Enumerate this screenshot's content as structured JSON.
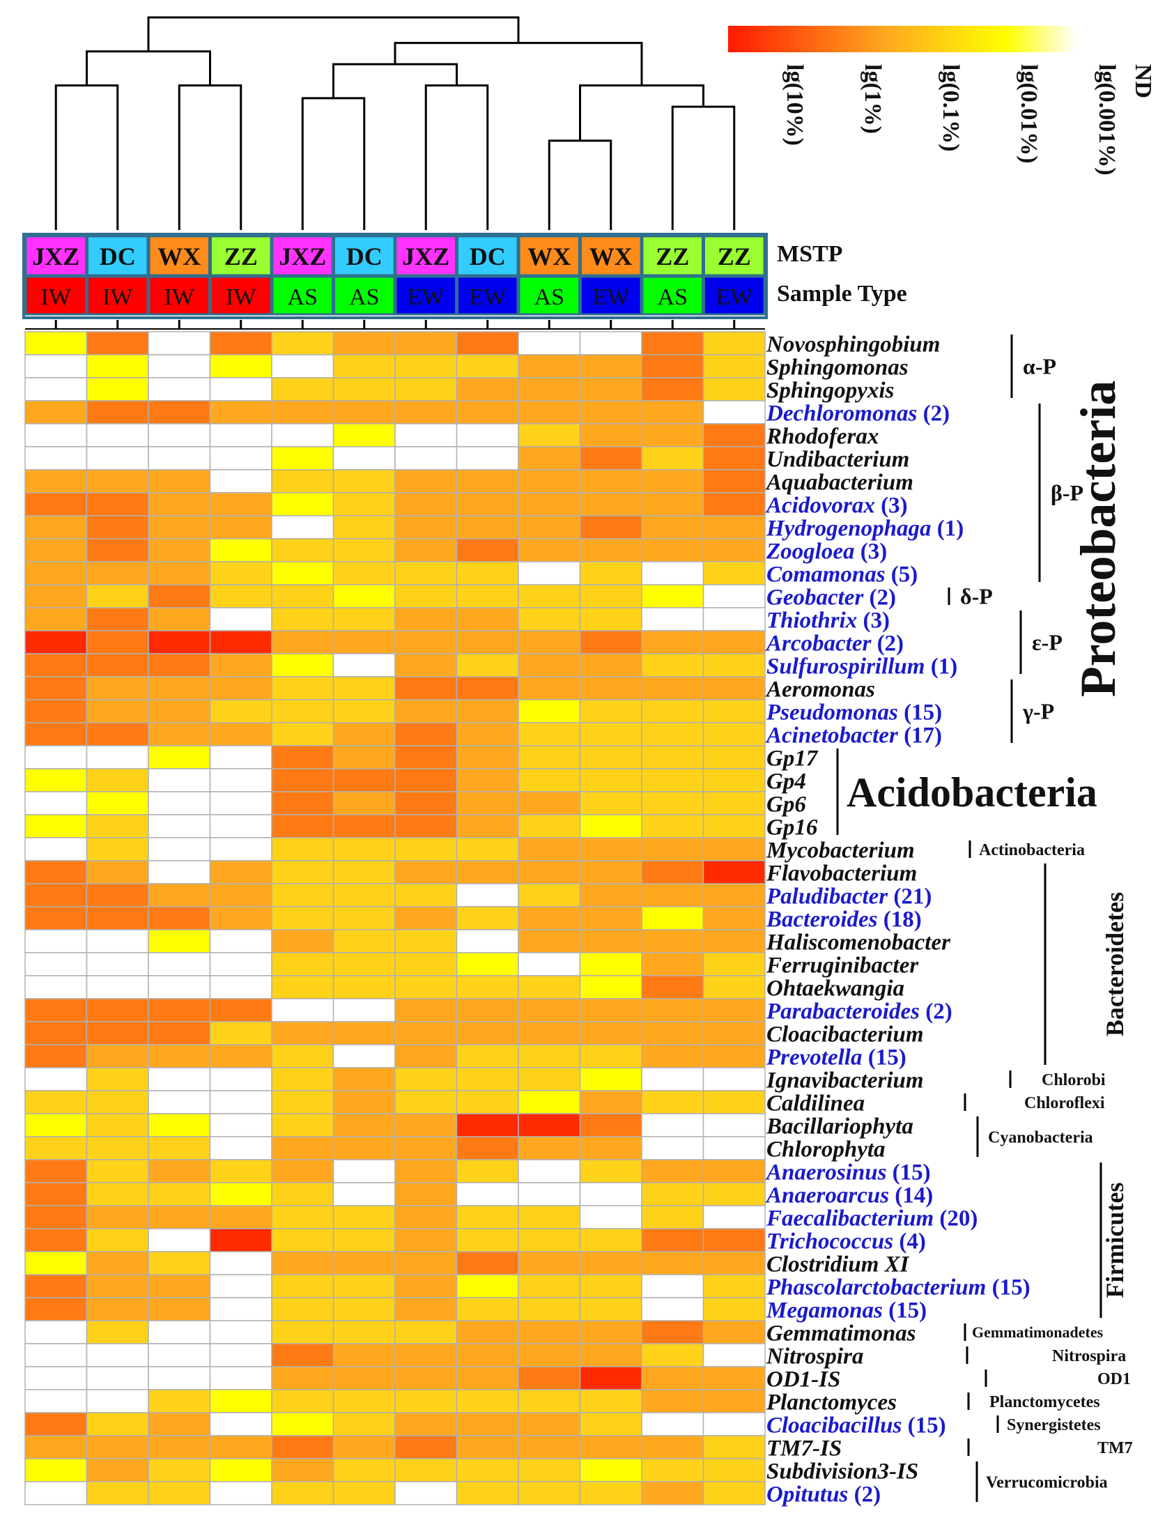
{
  "chart_data": {
    "type": "heatmap",
    "title": "",
    "legend_labels": [
      "lg(10%)",
      "lg(1%)",
      "lg(0.1%)",
      "lg(0.01%)",
      "lg(0.001%)",
      "ND"
    ],
    "color_scale": {
      "ND": "#ffffff",
      "levels": [
        "#ffffff",
        "#ffff00",
        "#ffd21a",
        "#ffa81f",
        "#ff7a14",
        "#ff2a00"
      ]
    },
    "row_header_labels": {
      "mstp": "MSTP",
      "sample_type": "Sample Type"
    },
    "columns": [
      {
        "mstp": "JXZ",
        "type": "IW"
      },
      {
        "mstp": "DC",
        "type": "IW"
      },
      {
        "mstp": "WX",
        "type": "IW"
      },
      {
        "mstp": "ZZ",
        "type": "IW"
      },
      {
        "mstp": "JXZ",
        "type": "AS"
      },
      {
        "mstp": "DC",
        "type": "AS"
      },
      {
        "mstp": "JXZ",
        "type": "EW"
      },
      {
        "mstp": "DC",
        "type": "EW"
      },
      {
        "mstp": "WX",
        "type": "AS"
      },
      {
        "mstp": "WX",
        "type": "EW"
      },
      {
        "mstp": "ZZ",
        "type": "AS"
      },
      {
        "mstp": "ZZ",
        "type": "EW"
      }
    ],
    "mstp_colors": {
      "JXZ": "#ff33ff",
      "DC": "#33ccff",
      "WX": "#ff8c1a",
      "ZZ": "#99ff33"
    },
    "type_colors": {
      "IW": "#ff0000",
      "AS": "#00ff00",
      "EW": "#0000ee"
    },
    "rows": [
      {
        "genus": "Novosphingobium",
        "count": "",
        "blue": false,
        "values": [
          1,
          4,
          0,
          4,
          2,
          3,
          3,
          4,
          0,
          0,
          4,
          2
        ]
      },
      {
        "genus": "Sphingomonas",
        "count": "",
        "blue": false,
        "values": [
          0,
          1,
          0,
          1,
          0,
          2,
          2,
          2,
          3,
          3,
          4,
          2
        ]
      },
      {
        "genus": "Sphingopyxis",
        "count": "",
        "blue": false,
        "values": [
          0,
          1,
          0,
          0,
          2,
          2,
          2,
          3,
          3,
          3,
          4,
          2
        ]
      },
      {
        "genus": "Dechloromonas",
        "count": "(2)",
        "blue": true,
        "values": [
          3,
          4,
          4,
          3,
          3,
          3,
          3,
          3,
          3,
          3,
          3,
          0
        ]
      },
      {
        "genus": "Rhodoferax",
        "count": "",
        "blue": false,
        "values": [
          0,
          0,
          0,
          0,
          0,
          1,
          0,
          0,
          2,
          3,
          3,
          4
        ]
      },
      {
        "genus": "Undibacterium",
        "count": "",
        "blue": false,
        "values": [
          0,
          0,
          0,
          0,
          1,
          0,
          0,
          0,
          3,
          4,
          2,
          4
        ]
      },
      {
        "genus": "Aquabacterium",
        "count": "",
        "blue": false,
        "values": [
          3,
          3,
          3,
          0,
          2,
          2,
          3,
          3,
          3,
          3,
          3,
          4
        ]
      },
      {
        "genus": "Acidovorax",
        "count": "(3)",
        "blue": true,
        "values": [
          4,
          4,
          3,
          3,
          1,
          2,
          3,
          3,
          3,
          3,
          3,
          4
        ]
      },
      {
        "genus": "Hydrogenophaga",
        "count": "(1)",
        "blue": true,
        "values": [
          3,
          4,
          3,
          3,
          0,
          2,
          3,
          3,
          3,
          4,
          3,
          3
        ]
      },
      {
        "genus": "Zoogloea",
        "count": "(3)",
        "blue": true,
        "values": [
          3,
          4,
          3,
          1,
          2,
          2,
          3,
          4,
          3,
          3,
          3,
          3
        ]
      },
      {
        "genus": "Comamonas",
        "count": "(5)",
        "blue": true,
        "values": [
          3,
          3,
          3,
          2,
          1,
          2,
          2,
          2,
          0,
          2,
          0,
          2
        ]
      },
      {
        "genus": "Geobacter",
        "count": "(2)",
        "blue": true,
        "values": [
          3,
          2,
          4,
          2,
          2,
          1,
          2,
          2,
          2,
          2,
          1,
          0
        ]
      },
      {
        "genus": "Thiothrix",
        "count": "(3)",
        "blue": true,
        "values": [
          3,
          4,
          3,
          0,
          2,
          2,
          3,
          3,
          2,
          2,
          0,
          0
        ]
      },
      {
        "genus": "Arcobacter",
        "count": "(2)",
        "blue": true,
        "values": [
          5,
          4,
          5,
          5,
          3,
          3,
          3,
          3,
          3,
          4,
          3,
          3
        ]
      },
      {
        "genus": "Sulfurospirillum",
        "count": "(1)",
        "blue": true,
        "values": [
          4,
          4,
          4,
          3,
          1,
          0,
          3,
          2,
          3,
          3,
          2,
          2
        ]
      },
      {
        "genus": "Aeromonas",
        "count": "",
        "blue": false,
        "values": [
          4,
          3,
          3,
          3,
          2,
          2,
          4,
          4,
          3,
          3,
          3,
          3
        ]
      },
      {
        "genus": "Pseudomonas",
        "count": "(15)",
        "blue": true,
        "values": [
          4,
          3,
          3,
          2,
          2,
          2,
          3,
          3,
          1,
          2,
          2,
          2
        ]
      },
      {
        "genus": "Acinetobacter",
        "count": "(17)",
        "blue": true,
        "values": [
          4,
          4,
          3,
          3,
          2,
          3,
          4,
          3,
          2,
          2,
          2,
          2
        ]
      },
      {
        "genus": "Gp17",
        "count": "",
        "blue": false,
        "values": [
          0,
          0,
          1,
          0,
          4,
          3,
          4,
          3,
          2,
          2,
          2,
          2
        ]
      },
      {
        "genus": "Gp4",
        "count": "",
        "blue": false,
        "values": [
          1,
          2,
          0,
          0,
          4,
          4,
          4,
          3,
          2,
          2,
          2,
          2
        ]
      },
      {
        "genus": "Gp6",
        "count": "",
        "blue": false,
        "values": [
          0,
          1,
          0,
          0,
          4,
          3,
          4,
          3,
          3,
          2,
          2,
          2
        ]
      },
      {
        "genus": "Gp16",
        "count": "",
        "blue": false,
        "values": [
          1,
          2,
          0,
          0,
          4,
          4,
          4,
          3,
          2,
          1,
          2,
          2
        ]
      },
      {
        "genus": "Mycobacterium",
        "count": "",
        "blue": false,
        "values": [
          0,
          2,
          0,
          0,
          2,
          2,
          2,
          2,
          3,
          3,
          3,
          3
        ]
      },
      {
        "genus": "Flavobacterium",
        "count": "",
        "blue": false,
        "values": [
          4,
          3,
          0,
          3,
          2,
          2,
          3,
          3,
          3,
          3,
          4,
          5
        ]
      },
      {
        "genus": "Paludibacter",
        "count": "(21)",
        "blue": true,
        "values": [
          4,
          4,
          3,
          3,
          2,
          2,
          2,
          0,
          2,
          3,
          3,
          3
        ]
      },
      {
        "genus": "Bacteroides",
        "count": "(18)",
        "blue": true,
        "values": [
          4,
          4,
          4,
          3,
          2,
          2,
          3,
          2,
          3,
          3,
          1,
          3
        ]
      },
      {
        "genus": "Haliscomenobacter",
        "count": "",
        "blue": false,
        "values": [
          0,
          0,
          1,
          0,
          3,
          2,
          2,
          0,
          3,
          3,
          3,
          3
        ]
      },
      {
        "genus": "Ferruginibacter",
        "count": "",
        "blue": false,
        "values": [
          0,
          0,
          0,
          0,
          2,
          2,
          2,
          1,
          0,
          1,
          3,
          2
        ]
      },
      {
        "genus": "Ohtaekwangia",
        "count": "",
        "blue": false,
        "values": [
          0,
          0,
          0,
          0,
          2,
          2,
          2,
          2,
          2,
          1,
          4,
          2
        ]
      },
      {
        "genus": "Parabacteroides",
        "count": "(2)",
        "blue": true,
        "values": [
          4,
          4,
          4,
          4,
          0,
          0,
          3,
          3,
          3,
          3,
          3,
          3
        ]
      },
      {
        "genus": "Cloacibacterium",
        "count": "",
        "blue": false,
        "values": [
          4,
          4,
          4,
          2,
          3,
          3,
          3,
          3,
          3,
          3,
          3,
          3
        ]
      },
      {
        "genus": "Prevotella",
        "count": "(15)",
        "blue": true,
        "values": [
          4,
          3,
          3,
          3,
          2,
          0,
          3,
          2,
          2,
          2,
          3,
          3
        ]
      },
      {
        "genus": "Ignavibacterium",
        "count": "",
        "blue": false,
        "values": [
          0,
          2,
          0,
          0,
          2,
          3,
          2,
          2,
          2,
          1,
          0,
          0
        ]
      },
      {
        "genus": "Caldilinea",
        "count": "",
        "blue": false,
        "values": [
          2,
          2,
          0,
          0,
          2,
          3,
          2,
          2,
          1,
          3,
          2,
          2
        ]
      },
      {
        "genus": "Bacillariophyta",
        "count": "",
        "blue": false,
        "values": [
          1,
          2,
          1,
          0,
          2,
          3,
          3,
          5,
          5,
          4,
          0,
          0
        ]
      },
      {
        "genus": "Chlorophyta",
        "count": "",
        "blue": false,
        "values": [
          2,
          2,
          2,
          0,
          3,
          3,
          3,
          4,
          3,
          3,
          0,
          0
        ]
      },
      {
        "genus": "Anaerosinus",
        "count": "(15)",
        "blue": true,
        "values": [
          4,
          2,
          3,
          2,
          3,
          0,
          3,
          2,
          0,
          2,
          3,
          3
        ]
      },
      {
        "genus": "Anaeroarcus",
        "count": "(14)",
        "blue": true,
        "values": [
          4,
          2,
          2,
          1,
          2,
          0,
          3,
          0,
          0,
          0,
          2,
          2
        ]
      },
      {
        "genus": "Faecalibacterium",
        "count": "(20)",
        "blue": true,
        "values": [
          4,
          3,
          3,
          3,
          2,
          2,
          3,
          2,
          2,
          0,
          2,
          0
        ]
      },
      {
        "genus": "Trichococcus",
        "count": "(4)",
        "blue": true,
        "values": [
          4,
          2,
          0,
          5,
          2,
          2,
          3,
          2,
          2,
          2,
          4,
          4
        ]
      },
      {
        "genus": "Clostridium XI",
        "count": "",
        "blue": false,
        "values": [
          1,
          3,
          2,
          0,
          3,
          3,
          3,
          4,
          3,
          3,
          3,
          3
        ]
      },
      {
        "genus": "Phascolarctobacterium",
        "count": "(15)",
        "blue": true,
        "values": [
          4,
          3,
          3,
          0,
          2,
          2,
          3,
          1,
          2,
          2,
          0,
          2
        ]
      },
      {
        "genus": "Megamonas",
        "count": "(15)",
        "blue": true,
        "values": [
          4,
          3,
          3,
          0,
          2,
          2,
          3,
          2,
          2,
          2,
          0,
          2
        ]
      },
      {
        "genus": "Gemmatimonas",
        "count": "",
        "blue": false,
        "values": [
          0,
          2,
          0,
          0,
          2,
          2,
          2,
          3,
          3,
          3,
          4,
          3
        ]
      },
      {
        "genus": "Nitrospira",
        "count": "",
        "blue": false,
        "values": [
          0,
          0,
          0,
          0,
          4,
          3,
          3,
          3,
          3,
          3,
          2,
          0
        ]
      },
      {
        "genus": "OD1-IS",
        "count": "",
        "blue": false,
        "values": [
          0,
          0,
          0,
          0,
          3,
          3,
          3,
          3,
          4,
          5,
          3,
          3
        ]
      },
      {
        "genus": "Planctomyces",
        "count": "",
        "blue": false,
        "values": [
          0,
          0,
          2,
          1,
          2,
          2,
          2,
          2,
          2,
          2,
          3,
          3
        ]
      },
      {
        "genus": "Cloacibacillus",
        "count": "(15)",
        "blue": true,
        "values": [
          4,
          2,
          3,
          0,
          1,
          2,
          3,
          3,
          3,
          2,
          0,
          0
        ]
      },
      {
        "genus": "TM7-IS",
        "count": "",
        "blue": false,
        "values": [
          3,
          3,
          3,
          3,
          4,
          3,
          4,
          3,
          3,
          3,
          3,
          2
        ]
      },
      {
        "genus": "Subdivision3-IS",
        "count": "",
        "blue": false,
        "values": [
          1,
          3,
          2,
          1,
          3,
          2,
          2,
          2,
          2,
          1,
          2,
          2
        ]
      },
      {
        "genus": "Opitutus",
        "count": "(2)",
        "blue": true,
        "values": [
          0,
          2,
          2,
          0,
          2,
          2,
          0,
          2,
          2,
          2,
          3,
          2
        ]
      }
    ],
    "groups": [
      {
        "label": "α-P",
        "rows": [
          0,
          2
        ],
        "x": "proteo"
      },
      {
        "label": "β-P",
        "rows": [
          3,
          10
        ],
        "x": "proteo"
      },
      {
        "label": "δ-P",
        "rows": [
          11,
          11
        ],
        "x": "proteo"
      },
      {
        "label": "ε-P",
        "rows": [
          12,
          14
        ],
        "x": "proteo"
      },
      {
        "label": "γ-P",
        "rows": [
          15,
          17
        ],
        "x": "proteo"
      }
    ],
    "phyla": [
      {
        "label": "Proteobacteria",
        "rows": [
          0,
          17
        ],
        "vertical": true
      },
      {
        "label": "Acidobacteria",
        "rows": [
          18,
          21
        ],
        "vertical": false
      },
      {
        "label": "Actinobacteria",
        "rows": [
          22,
          22
        ],
        "vertical": false
      },
      {
        "label": "Bacteroidetes",
        "rows": [
          23,
          31
        ],
        "vertical": true
      },
      {
        "label": "Chlorobi",
        "rows": [
          32,
          32
        ],
        "vertical": false
      },
      {
        "label": "Chloroflexi",
        "rows": [
          33,
          33
        ],
        "vertical": false
      },
      {
        "label": "Cyanobacteria",
        "rows": [
          34,
          35
        ],
        "vertical": false
      },
      {
        "label": "Firmicutes",
        "rows": [
          36,
          42
        ],
        "vertical": true
      },
      {
        "label": "Gemmatimonadetes",
        "rows": [
          43,
          43
        ],
        "vertical": false
      },
      {
        "label": "Nitrospira",
        "rows": [
          44,
          44
        ],
        "vertical": false
      },
      {
        "label": "OD1",
        "rows": [
          45,
          45
        ],
        "vertical": false
      },
      {
        "label": "Planctomycetes",
        "rows": [
          46,
          46
        ],
        "vertical": false
      },
      {
        "label": "Synergistetes",
        "rows": [
          47,
          47
        ],
        "vertical": false
      },
      {
        "label": "TM7",
        "rows": [
          48,
          48
        ],
        "vertical": false
      },
      {
        "label": "Verrucomicrobia",
        "rows": [
          49,
          50
        ],
        "vertical": false
      }
    ],
    "dendrogram": {
      "leaves": 12,
      "merges": [
        [
          8,
          9,
          0.42
        ],
        [
          10,
          11,
          0.58
        ],
        [
          -1,
          -2,
          0.68
        ],
        [
          4,
          5,
          0.62
        ],
        [
          6,
          7,
          0.68
        ],
        [
          -4,
          -5,
          0.78
        ],
        [
          0,
          1,
          0.68
        ],
        [
          2,
          3,
          0.68
        ],
        [
          -7,
          -8,
          0.84
        ],
        [
          -6,
          -3,
          0.88
        ],
        [
          -9,
          -10,
          1.0
        ]
      ]
    }
  }
}
